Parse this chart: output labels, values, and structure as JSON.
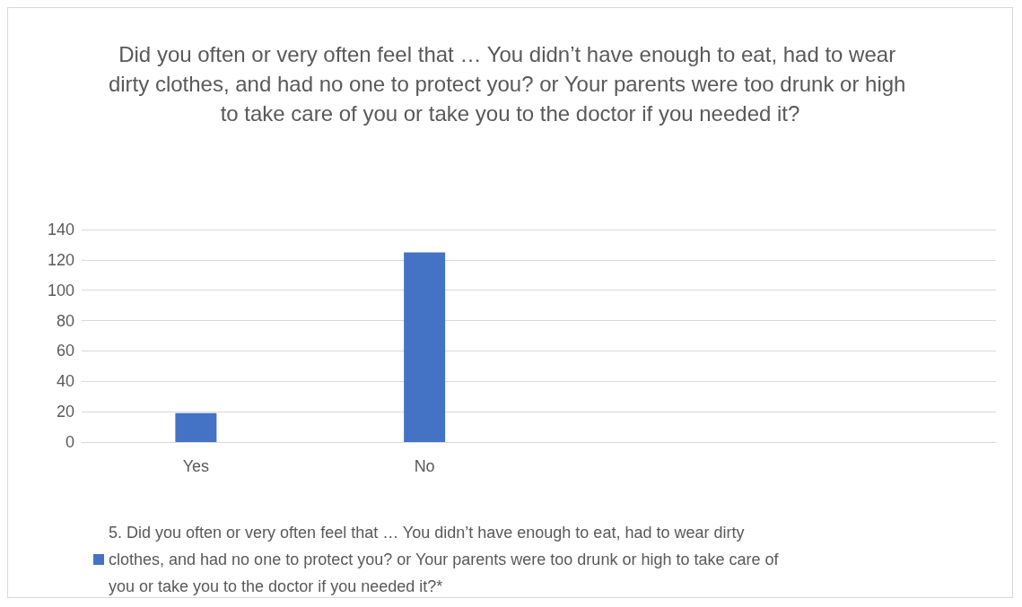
{
  "chart_data": {
    "type": "bar",
    "title": "Did you often or very often feel that … You didn’t have enough to eat, had to wear dirty clothes, and had no one to protect you? or Your parents were too drunk or high to take care of you or take you to the doctor if you needed it?",
    "categories": [
      "Yes",
      "No",
      null,
      null
    ],
    "series": [
      {
        "name": "5. Did you often or very often feel that … You didn’t have enough to eat, had to wear dirty clothes, and had no one to protect you? or Your parents were too drunk or high to take care of you or take you to the doctor if you needed it?*",
        "color": "#4472c4",
        "values": [
          19,
          125,
          null,
          null
        ]
      }
    ],
    "ylim": [
      0,
      140
    ],
    "yticks": [
      0,
      20,
      40,
      60,
      80,
      100,
      120,
      140
    ],
    "grid": "y",
    "legend": "bottom"
  }
}
